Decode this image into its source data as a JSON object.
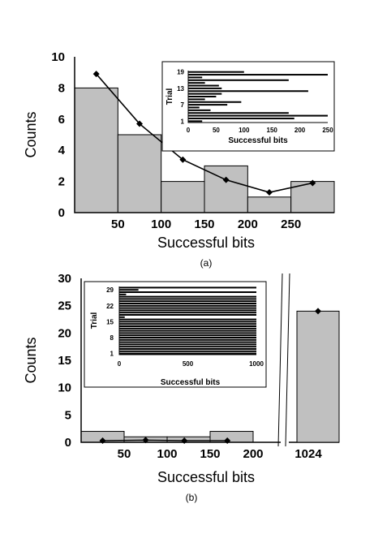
{
  "chart_data": [
    {
      "type": "bar",
      "subtitle": "(a)",
      "xlabel": "Successful bits",
      "ylabel": "Counts",
      "xlim": [
        0,
        300
      ],
      "ylim": [
        0,
        10
      ],
      "x_ticks": [
        50,
        100,
        150,
        200,
        250
      ],
      "y_ticks": [
        0,
        2,
        4,
        6,
        8,
        10
      ],
      "bins": [
        [
          0,
          50
        ],
        [
          50,
          100
        ],
        [
          100,
          150
        ],
        [
          150,
          200
        ],
        [
          200,
          250
        ],
        [
          250,
          300
        ]
      ],
      "values": [
        8,
        5,
        2,
        3,
        1,
        2
      ],
      "line": {
        "x": [
          25,
          75,
          125,
          175,
          225,
          275
        ],
        "y": [
          8.9,
          5.7,
          3.4,
          2.1,
          1.3,
          1.9
        ]
      },
      "inset": {
        "type": "horizontal-bar",
        "xlabel": "Successful bits",
        "ylabel": "Trial",
        "xlim": [
          0,
          250
        ],
        "x_ticks": [
          0,
          50,
          100,
          150,
          200,
          250
        ],
        "y_tick_labels": [
          "1",
          "7",
          "13",
          "19"
        ],
        "trials": [
          1,
          2,
          3,
          4,
          5,
          6,
          7,
          8,
          9,
          10,
          11,
          12,
          13,
          14,
          15,
          16,
          17,
          18,
          19
        ],
        "values": [
          25,
          190,
          250,
          180,
          40,
          20,
          70,
          95,
          30,
          50,
          60,
          215,
          60,
          55,
          30,
          180,
          25,
          250,
          100
        ]
      }
    },
    {
      "type": "bar",
      "subtitle": "(b)",
      "xlabel": "Successful bits",
      "ylabel": "Counts",
      "xlim": [
        0,
        200
      ],
      "ylim": [
        0,
        30
      ],
      "x_ticks": [
        50,
        100,
        150,
        200
      ],
      "y_ticks": [
        0,
        5,
        10,
        15,
        20,
        25,
        30
      ],
      "break_tick": "1024",
      "bins": [
        [
          0,
          50
        ],
        [
          50,
          100
        ],
        [
          100,
          150
        ],
        [
          150,
          200
        ]
      ],
      "values": [
        2,
        1,
        1,
        2
      ],
      "line": {
        "x": [
          25,
          75,
          120,
          170
        ],
        "y": [
          0.3,
          0.4,
          0.3,
          0.3
        ]
      },
      "break_bar": {
        "value": 24,
        "point": 24
      },
      "inset": {
        "type": "horizontal-bar",
        "xlabel": "Successful bits",
        "ylabel": "Trial",
        "xlim": [
          0,
          1000
        ],
        "x_ticks": [
          0,
          500,
          1000
        ],
        "y_tick_labels": [
          "1",
          "8",
          "15",
          "22",
          "29"
        ],
        "trials": [
          1,
          2,
          3,
          4,
          5,
          6,
          7,
          8,
          9,
          10,
          11,
          12,
          13,
          14,
          15,
          16,
          17,
          18,
          19,
          20,
          21,
          22,
          23,
          24,
          25,
          26,
          27,
          28,
          29,
          30
        ],
        "values": [
          1000,
          1000,
          1000,
          1000,
          1000,
          1000,
          1000,
          1000,
          1000,
          1000,
          1000,
          1000,
          1000,
          1000,
          1000,
          1000,
          40,
          1000,
          1000,
          1000,
          1000,
          1000,
          1000,
          1000,
          1000,
          1000,
          50,
          1000,
          140,
          1000
        ]
      }
    }
  ]
}
